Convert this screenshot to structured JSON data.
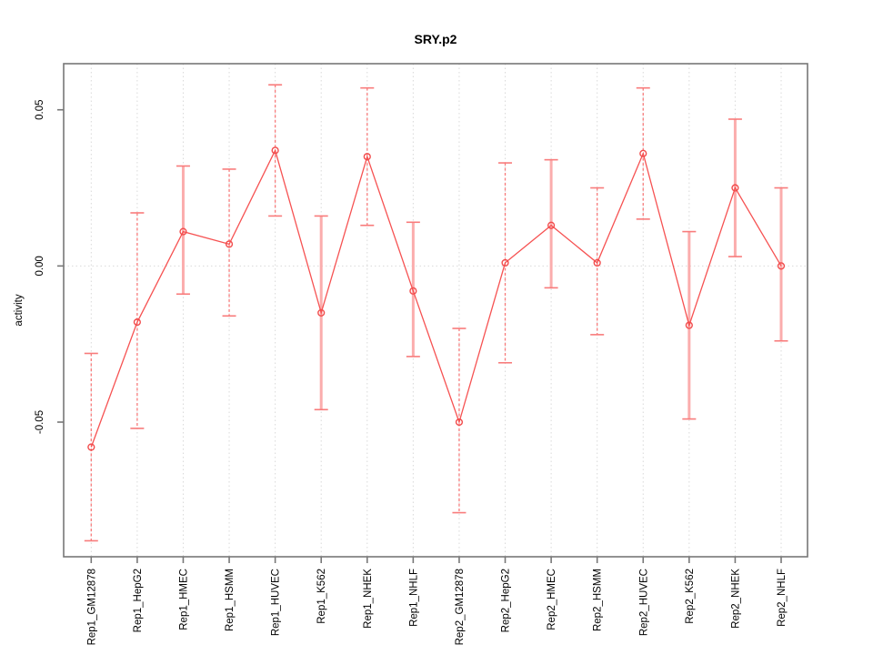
{
  "chart_data": {
    "type": "line",
    "title": "SRY.p2",
    "xlabel": "",
    "ylabel": "activity",
    "categories": [
      "Rep1_GM12878",
      "Rep1_HepG2",
      "Rep1_HMEC",
      "Rep1_HSMM",
      "Rep1_HUVEC",
      "Rep1_K562",
      "Rep1_NHEK",
      "Rep1_NHLF",
      "Rep2_GM12878",
      "Rep2_HepG2",
      "Rep2_HMEC",
      "Rep2_HSMM",
      "Rep2_HUVEC",
      "Rep2_K562",
      "Rep2_NHEK",
      "Rep2_NHLF"
    ],
    "series": [
      {
        "name": "activity",
        "values": [
          -0.058,
          -0.018,
          0.011,
          0.007,
          0.037,
          -0.015,
          0.035,
          -0.008,
          -0.05,
          0.001,
          0.013,
          0.001,
          0.036,
          -0.019,
          0.025,
          0.0
        ],
        "error_high": [
          -0.028,
          0.017,
          0.032,
          0.031,
          0.058,
          0.016,
          0.057,
          0.014,
          -0.02,
          0.033,
          0.034,
          0.025,
          0.057,
          0.011,
          0.047,
          0.025
        ],
        "error_low": [
          -0.088,
          -0.052,
          -0.009,
          -0.016,
          0.016,
          -0.046,
          0.013,
          -0.029,
          -0.079,
          -0.031,
          -0.007,
          -0.022,
          0.015,
          -0.049,
          0.003,
          -0.024
        ],
        "error_bar_styles": [
          "dashed",
          "dashed",
          "solid",
          "dashed",
          "dashed",
          "solid",
          "dashed",
          "solid",
          "dashed",
          "dashed",
          "solid",
          "dashed",
          "dashed",
          "solid",
          "solid",
          "solid"
        ]
      }
    ],
    "y_ticks": [
      {
        "label": "0.05",
        "value": 0.05
      },
      {
        "label": "0.00",
        "value": 0.0
      },
      {
        "label": "-0.05",
        "value": -0.05
      }
    ],
    "ylim": [
      -0.093,
      0.065
    ],
    "grid": {
      "vertical_at_categories": true,
      "horizontal_at_zero": true,
      "style": "dotted"
    },
    "legend": "none",
    "marker": "open-circle",
    "colors": {
      "line": "#f65252",
      "point_stroke": "#f24c4c",
      "error_bar_dashed": "#f87b7b",
      "error_bar_solid": "#fbadad",
      "error_cap": "#f87b7b",
      "grid": "#d9d9d9",
      "axis_box": "#777777",
      "text": "#000000"
    }
  }
}
